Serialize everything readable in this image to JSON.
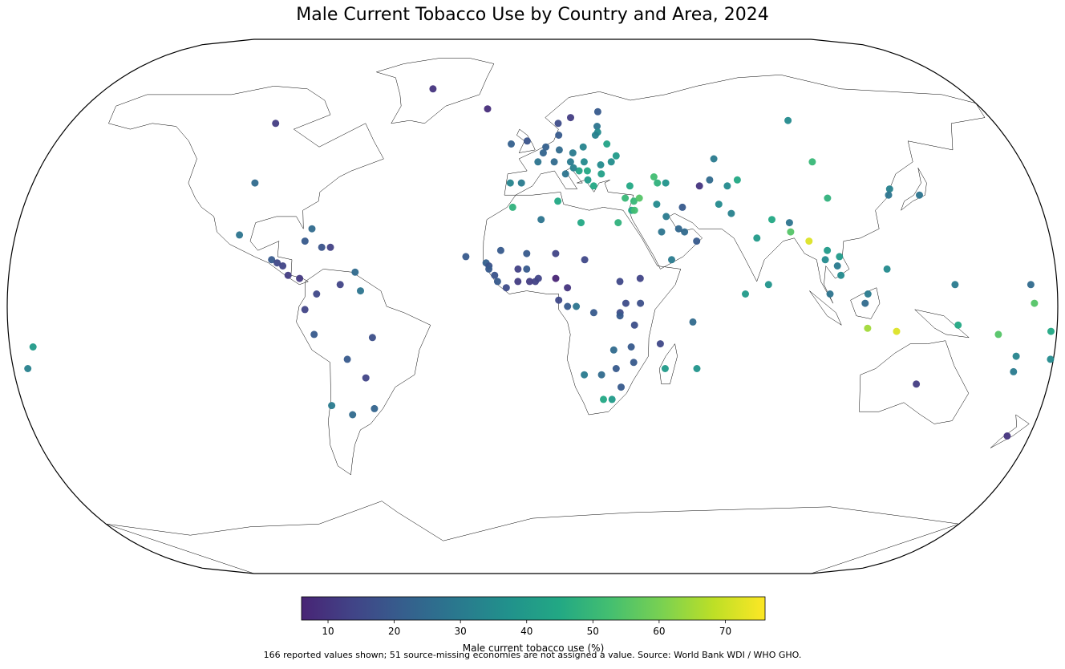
{
  "title": "Male Current Tobacco Use by Country and Area, 2024",
  "colorbar": {
    "label": "Male current tobacco use (%)",
    "min": 6,
    "max": 76,
    "ticks": [
      "10",
      "20",
      "30",
      "40",
      "50",
      "60",
      "70"
    ],
    "colors": [
      "#482475",
      "#414487",
      "#355f8d",
      "#2a788e",
      "#21918c",
      "#22a884",
      "#44bf70",
      "#7ad151",
      "#bddf26",
      "#fde725"
    ]
  },
  "note": "166 reported values shown; 51 source-missing economies are not assigned a value. Source: World Bank WDI / WHO GHO.",
  "points": [
    {
      "lon": -42,
      "lat": 72,
      "v": 10
    },
    {
      "lon": -100,
      "lat": 60,
      "v": 12
    },
    {
      "lon": -100,
      "lat": 40,
      "v": 25
    },
    {
      "lon": -102,
      "lat": 23,
      "v": 28
    },
    {
      "lon": -77,
      "lat": 25,
      "v": 25
    },
    {
      "lon": -90,
      "lat": 15,
      "v": 20
    },
    {
      "lon": -88,
      "lat": 14,
      "v": 15
    },
    {
      "lon": -86,
      "lat": 13,
      "v": 14
    },
    {
      "lon": -84,
      "lat": 10,
      "v": 12
    },
    {
      "lon": -80,
      "lat": 9,
      "v": 11
    },
    {
      "lon": -79,
      "lat": 21,
      "v": 20
    },
    {
      "lon": -73,
      "lat": 19,
      "v": 18
    },
    {
      "lon": -70,
      "lat": 19,
      "v": 13
    },
    {
      "lon": -74,
      "lat": 4,
      "v": 15
    },
    {
      "lon": -66,
      "lat": 7,
      "v": 14
    },
    {
      "lon": -61,
      "lat": 11,
      "v": 25
    },
    {
      "lon": -59,
      "lat": 5,
      "v": 28
    },
    {
      "lon": -78,
      "lat": -1,
      "v": 14
    },
    {
      "lon": -75,
      "lat": -9,
      "v": 20
    },
    {
      "lon": -55,
      "lat": -10,
      "v": 17
    },
    {
      "lon": -64,
      "lat": -17,
      "v": 20
    },
    {
      "lon": -58,
      "lat": -23,
      "v": 14
    },
    {
      "lon": -71,
      "lat": -32,
      "v": 30
    },
    {
      "lon": -64,
      "lat": -35,
      "v": 25
    },
    {
      "lon": -56,
      "lat": -33,
      "v": 23
    },
    {
      "lon": -172,
      "lat": -13,
      "v": 40
    },
    {
      "lon": -175,
      "lat": -20,
      "v": 32
    },
    {
      "lon": -18,
      "lat": 65,
      "v": 8
    },
    {
      "lon": -8,
      "lat": 53,
      "v": 22
    },
    {
      "lon": -2,
      "lat": 54,
      "v": 18
    },
    {
      "lon": -4,
      "lat": 40,
      "v": 30
    },
    {
      "lon": -8,
      "lat": 40,
      "v": 33
    },
    {
      "lon": 2,
      "lat": 47,
      "v": 28
    },
    {
      "lon": 10,
      "lat": 51,
      "v": 25
    },
    {
      "lon": 5,
      "lat": 52,
      "v": 22
    },
    {
      "lon": 4,
      "lat": 50,
      "v": 23
    },
    {
      "lon": 10,
      "lat": 60,
      "v": 16
    },
    {
      "lon": 15,
      "lat": 62,
      "v": 12
    },
    {
      "lon": 26,
      "lat": 64,
      "v": 20
    },
    {
      "lon": 10,
      "lat": 56,
      "v": 20
    },
    {
      "lon": 8,
      "lat": 47,
      "v": 25
    },
    {
      "lon": 12,
      "lat": 43,
      "v": 28
    },
    {
      "lon": 14,
      "lat": 47,
      "v": 30
    },
    {
      "lon": 19,
      "lat": 52,
      "v": 33
    },
    {
      "lon": 15,
      "lat": 50,
      "v": 30
    },
    {
      "lon": 19,
      "lat": 47,
      "v": 35
    },
    {
      "lon": 25,
      "lat": 46,
      "v": 35
    },
    {
      "lon": 25,
      "lat": 43,
      "v": 42
    },
    {
      "lon": 22,
      "lat": 39,
      "v": 45
    },
    {
      "lon": 20,
      "lat": 41,
      "v": 40
    },
    {
      "lon": 20,
      "lat": 44,
      "v": 45
    },
    {
      "lon": 17,
      "lat": 44,
      "v": 43
    },
    {
      "lon": 15,
      "lat": 45,
      "v": 32
    },
    {
      "lon": 25,
      "lat": 59,
      "v": 28
    },
    {
      "lon": 25,
      "lat": 57,
      "v": 35
    },
    {
      "lon": 24,
      "lat": 56,
      "v": 32
    },
    {
      "lon": 28,
      "lat": 53,
      "v": 43
    },
    {
      "lon": 31,
      "lat": 49,
      "v": 40
    },
    {
      "lon": 29,
      "lat": 47,
      "v": 36
    },
    {
      "lon": 35,
      "lat": 39,
      "v": 45
    },
    {
      "lon": 33,
      "lat": 35,
      "v": 50
    },
    {
      "lon": 44,
      "lat": 42,
      "v": 52
    },
    {
      "lon": 45,
      "lat": 40,
      "v": 48
    },
    {
      "lon": 48,
      "lat": 40,
      "v": 38
    },
    {
      "lon": 35,
      "lat": 31,
      "v": 44
    },
    {
      "lon": 36,
      "lat": 34,
      "v": 50
    },
    {
      "lon": 36,
      "lat": 31,
      "v": 52
    },
    {
      "lon": 38,
      "lat": 35,
      "v": 55
    },
    {
      "lon": 44,
      "lat": 33,
      "v": 35
    },
    {
      "lon": 53,
      "lat": 32,
      "v": 20
    },
    {
      "lon": 45,
      "lat": 24,
      "v": 28
    },
    {
      "lon": 53,
      "lat": 24,
      "v": 25
    },
    {
      "lon": 57,
      "lat": 21,
      "v": 20
    },
    {
      "lon": 47,
      "lat": 29,
      "v": 30
    },
    {
      "lon": 51,
      "lat": 25,
      "v": 24
    },
    {
      "lon": 48,
      "lat": 15,
      "v": 30
    },
    {
      "lon": 60,
      "lat": 39,
      "v": 10
    },
    {
      "lon": 64,
      "lat": 41,
      "v": 25
    },
    {
      "lon": 67,
      "lat": 48,
      "v": 30
    },
    {
      "lon": 74,
      "lat": 41,
      "v": 45
    },
    {
      "lon": 70,
      "lat": 39,
      "v": 35
    },
    {
      "lon": 66,
      "lat": 33,
      "v": 35
    },
    {
      "lon": 70,
      "lat": 30,
      "v": 32
    },
    {
      "lon": 78,
      "lat": 22,
      "v": 40
    },
    {
      "lon": 84,
      "lat": 28,
      "v": 45
    },
    {
      "lon": 90,
      "lat": 27,
      "v": 28
    },
    {
      "lon": 90,
      "lat": 24,
      "v": 55
    },
    {
      "lon": 96,
      "lat": 21,
      "v": 72
    },
    {
      "lon": 81,
      "lat": 7,
      "v": 38
    },
    {
      "lon": 73,
      "lat": 4,
      "v": 40
    },
    {
      "lon": 103,
      "lat": 47,
      "v": 50
    },
    {
      "lon": 105,
      "lat": 35,
      "v": 48
    },
    {
      "lon": 102,
      "lat": 18,
      "v": 40
    },
    {
      "lon": 101,
      "lat": 15,
      "v": 35
    },
    {
      "lon": 105,
      "lat": 13,
      "v": 30
    },
    {
      "lon": 106,
      "lat": 16,
      "v": 40
    },
    {
      "lon": 106,
      "lat": 10,
      "v": 35
    },
    {
      "lon": 102,
      "lat": 4,
      "v": 28
    },
    {
      "lon": 115,
      "lat": 4,
      "v": 30
    },
    {
      "lon": 114,
      "lat": 1,
      "v": 25
    },
    {
      "lon": 122,
      "lat": 12,
      "v": 35
    },
    {
      "lon": 115,
      "lat": -7,
      "v": 65
    },
    {
      "lon": 125,
      "lat": -8,
      "v": 72
    },
    {
      "lon": 128,
      "lat": 38,
      "v": 32
    },
    {
      "lon": 127,
      "lat": 36,
      "v": 28
    },
    {
      "lon": 138,
      "lat": 36,
      "v": 28
    },
    {
      "lon": 100,
      "lat": 61,
      "v": 35
    },
    {
      "lon": 145,
      "lat": 7,
      "v": 30
    },
    {
      "lon": 146,
      "lat": -6,
      "v": 45
    },
    {
      "lon": 160,
      "lat": -9,
      "v": 55
    },
    {
      "lon": 167,
      "lat": -16,
      "v": 33
    },
    {
      "lon": 172,
      "lat": 1,
      "v": 55
    },
    {
      "lon": 171,
      "lat": 7,
      "v": 25
    },
    {
      "lon": 179,
      "lat": -17,
      "v": 35
    },
    {
      "lon": 178,
      "lat": -8,
      "v": 45
    },
    {
      "lon": 167,
      "lat": -21,
      "v": 30
    },
    {
      "lon": 134,
      "lat": -25,
      "v": 12
    },
    {
      "lon": 172,
      "lat": -42,
      "v": 10
    },
    {
      "lon": -23,
      "lat": 16,
      "v": 20
    },
    {
      "lon": -16,
      "lat": 14,
      "v": 22
    },
    {
      "lon": -15,
      "lat": 13,
      "v": 18
    },
    {
      "lon": -15,
      "lat": 12,
      "v": 20
    },
    {
      "lon": -13,
      "lat": 10,
      "v": 18
    },
    {
      "lon": -12,
      "lat": 8,
      "v": 20
    },
    {
      "lon": -9,
      "lat": 6,
      "v": 16
    },
    {
      "lon": -11,
      "lat": 18,
      "v": 20
    },
    {
      "lon": -2,
      "lat": 17,
      "v": 20
    },
    {
      "lon": -5,
      "lat": 12,
      "v": 13
    },
    {
      "lon": -2,
      "lat": 12,
      "v": 20
    },
    {
      "lon": -5,
      "lat": 8,
      "v": 12
    },
    {
      "lon": -1,
      "lat": 8,
      "v": 12
    },
    {
      "lon": 1,
      "lat": 8,
      "v": 13
    },
    {
      "lon": 2,
      "lat": 9,
      "v": 14
    },
    {
      "lon": 8,
      "lat": 17,
      "v": 14
    },
    {
      "lon": 8,
      "lat": 9,
      "v": 6
    },
    {
      "lon": 12,
      "lat": 6,
      "v": 10
    },
    {
      "lon": 18,
      "lat": 15,
      "v": 15
    },
    {
      "lon": 9,
      "lat": 2,
      "v": 15
    },
    {
      "lon": 12,
      "lat": 0,
      "v": 20
    },
    {
      "lon": 15,
      "lat": 0,
      "v": 28
    },
    {
      "lon": 21,
      "lat": -2,
      "v": 20
    },
    {
      "lon": 30,
      "lat": -2,
      "v": 16
    },
    {
      "lon": 32,
      "lat": 1,
      "v": 16
    },
    {
      "lon": 30,
      "lat": -3,
      "v": 20
    },
    {
      "lon": 30,
      "lat": 8,
      "v": 15
    },
    {
      "lon": 37,
      "lat": 9,
      "v": 14
    },
    {
      "lon": 37,
      "lat": 1,
      "v": 17
    },
    {
      "lon": 35,
      "lat": -6,
      "v": 17
    },
    {
      "lon": 28,
      "lat": -14,
      "v": 25
    },
    {
      "lon": 34,
      "lat": -13,
      "v": 20
    },
    {
      "lon": 35,
      "lat": -18,
      "v": 20
    },
    {
      "lon": 44,
      "lat": -12,
      "v": 15
    },
    {
      "lon": 46,
      "lat": -20,
      "v": 40
    },
    {
      "lon": 57,
      "lat": -20,
      "v": 38
    },
    {
      "lon": 55,
      "lat": -5,
      "v": 25
    },
    {
      "lon": 18,
      "lat": -22,
      "v": 30
    },
    {
      "lon": 24,
      "lat": -22,
      "v": 25
    },
    {
      "lon": 29,
      "lat": -20,
      "v": 20
    },
    {
      "lon": 28,
      "lat": -30,
      "v": 40
    },
    {
      "lon": 25,
      "lat": -30,
      "v": 45
    },
    {
      "lon": 31,
      "lat": -26,
      "v": 20
    },
    {
      "lon": 3,
      "lat": 28,
      "v": 28
    },
    {
      "lon": 9,
      "lat": 34,
      "v": 45
    },
    {
      "lon": -7,
      "lat": 32,
      "v": 48
    },
    {
      "lon": 17,
      "lat": 27,
      "v": 45
    },
    {
      "lon": 30,
      "lat": 27,
      "v": 48
    }
  ]
}
